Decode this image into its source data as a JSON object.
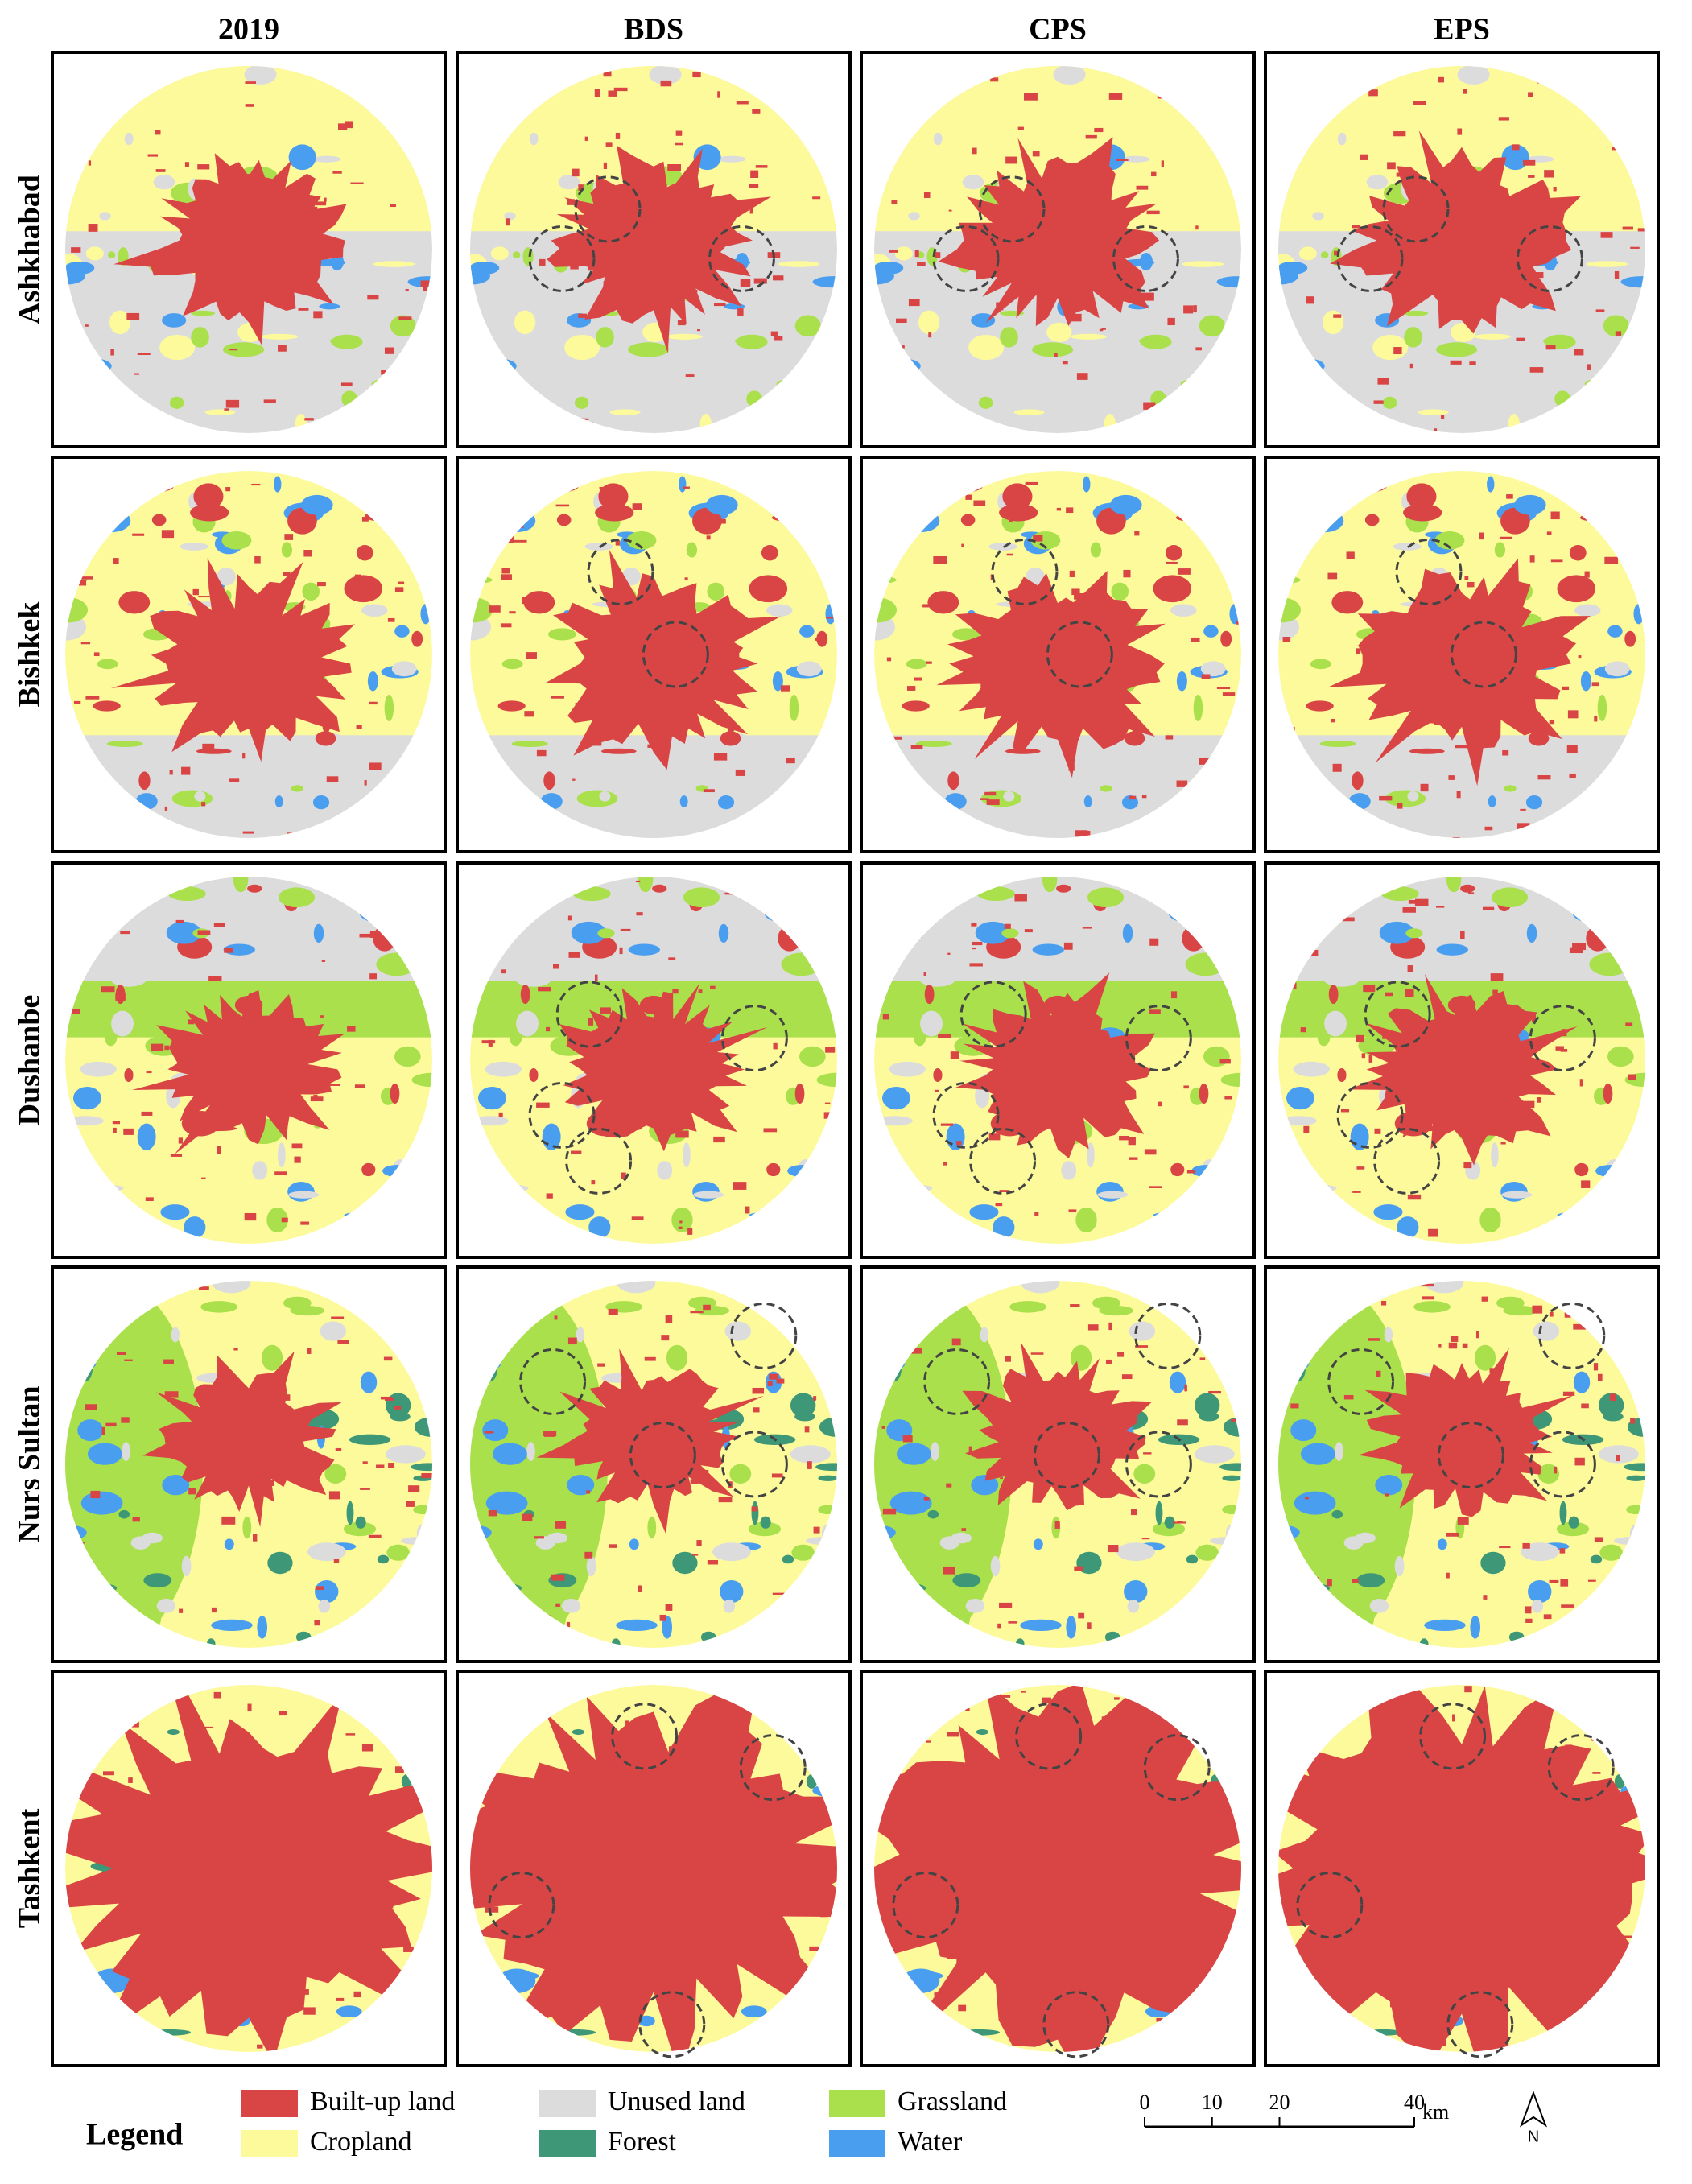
{
  "columns": [
    "2019",
    "BDS",
    "CPS",
    "EPS"
  ],
  "rows": [
    "Ashkhabad",
    "Bishkek",
    "Dushanbe",
    "Nurs Sultan",
    "Tashkent"
  ],
  "legend": {
    "title": "Legend",
    "items": [
      {
        "name": "Built-up land",
        "color": "#d94545"
      },
      {
        "name": "Cropland",
        "color": "#fdfa9c"
      },
      {
        "name": "Unused land",
        "color": "#dcdcdc"
      },
      {
        "name": "Forest",
        "color": "#3e9877"
      },
      {
        "name": "Grassland",
        "color": "#a9e04b"
      },
      {
        "name": "Water",
        "color": "#4a9ef0"
      }
    ]
  },
  "scale_bar": {
    "ticks": [
      0,
      10,
      20,
      40
    ],
    "unit": "km"
  },
  "north_arrow": "N"
}
